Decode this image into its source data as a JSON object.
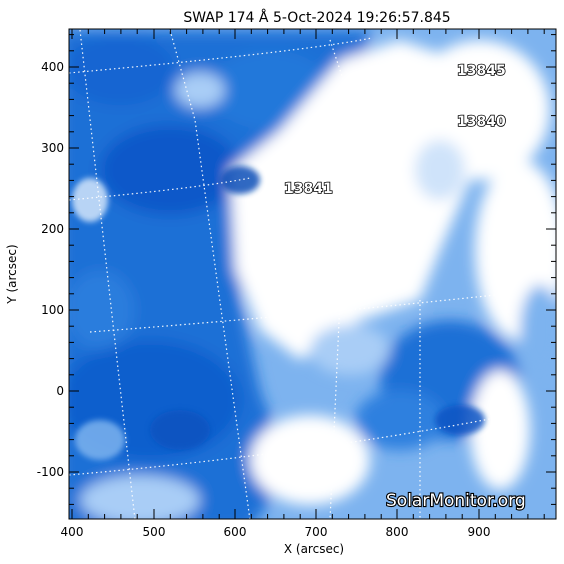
{
  "title": "SWAP 174 Å  5-Oct-2024 19:26:57.845",
  "x_axis": {
    "label": "X (arcsec)",
    "ticks": [
      "400",
      "500",
      "600",
      "700",
      "800",
      "900"
    ]
  },
  "y_axis": {
    "label": "Y (arcsec)",
    "ticks": [
      "400",
      "300",
      "200",
      "100",
      "0",
      "-100"
    ]
  },
  "regions": [
    "13845",
    "13840",
    "13841"
  ],
  "watermark": "SolarMonitor.org",
  "colors": {
    "deep_blue": "#0b59c9",
    "mid_blue": "#4d93e6",
    "light_blue": "#a9cdf6",
    "white": "#ffffff",
    "grid": "#ffffff"
  }
}
